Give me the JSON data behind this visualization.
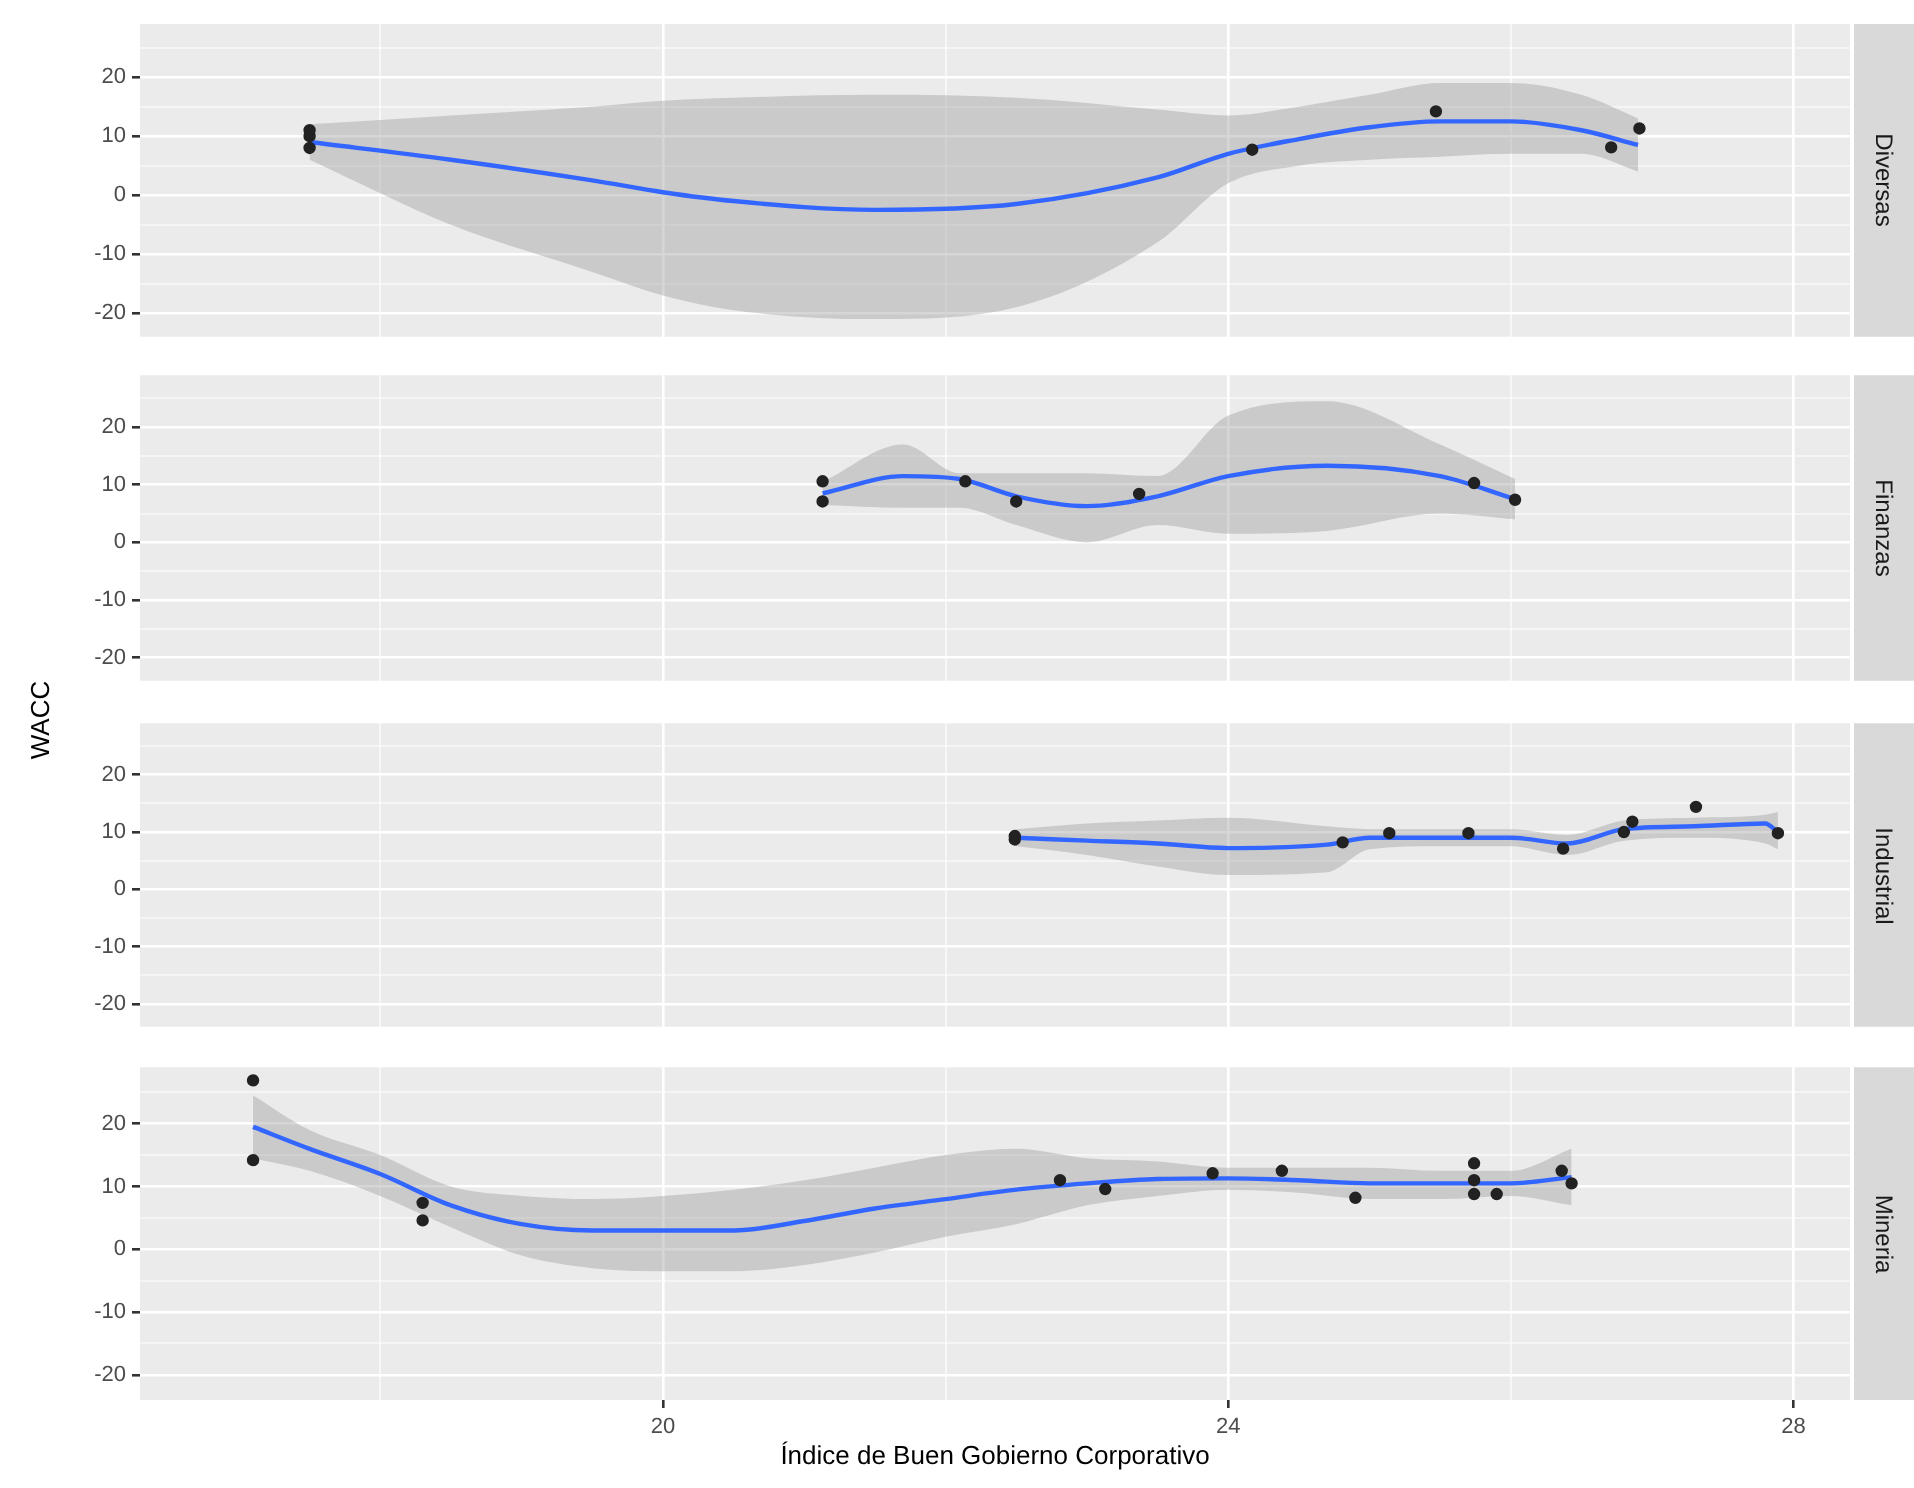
{
  "chart_data": [
    {
      "type": "scatter",
      "annotations": [
        "Diversas"
      ],
      "xlim": [
        16.3,
        28.4
      ],
      "ylim": [
        -24,
        29
      ],
      "xticks": [
        {
          "value": 18,
          "label": null
        },
        20,
        {
          "value": 22,
          "label": null
        },
        24,
        {
          "value": 26,
          "label": null
        },
        28
      ],
      "yticks": [
        -20,
        {
          "value": -15,
          "label": null
        },
        -10,
        {
          "value": -5,
          "label": null
        },
        0,
        {
          "value": 5,
          "label": null
        },
        10,
        {
          "value": 15,
          "label": null
        },
        20,
        {
          "value": 25,
          "label": null
        }
      ],
      "tick_labels": "y",
      "grid": true,
      "legend": false,
      "series": [
        {
          "type": "line",
          "color": "#3366ff",
          "marker": "none",
          "x": [
            17.5,
            18.5,
            19.5,
            20,
            20.5,
            21.5,
            22.5,
            23.5,
            24,
            24.5,
            25,
            25.5,
            26,
            26.5,
            26.9
          ],
          "values": [
            9,
            6,
            2.5,
            0.5,
            -1,
            -2.5,
            -1.5,
            3,
            7,
            9.5,
            11.5,
            12.5,
            12.5,
            11,
            8.5
          ],
          "lower": [
            6,
            -5,
            -13,
            -17,
            -19.5,
            -21,
            -19,
            -8,
            2,
            5,
            6,
            6.5,
            7,
            7,
            4
          ],
          "upper": [
            12,
            13.5,
            15,
            16,
            16.5,
            17,
            16.5,
            14.5,
            13.5,
            15,
            17,
            19,
            19,
            17,
            13
          ]
        },
        {
          "type": "scatter",
          "color": "#222222",
          "marker": "circle",
          "x": [
            17.5,
            17.5,
            17.5,
            24.17,
            25.47,
            26.71,
            26.91
          ],
          "values": [
            11,
            10,
            8,
            7.7,
            14.2,
            8.1,
            11.3
          ]
        }
      ]
    },
    {
      "type": "scatter",
      "annotations": [
        "Finanzas"
      ],
      "ylabel": "WACC",
      "xlim": [
        16.3,
        28.4
      ],
      "ylim": [
        -24,
        29
      ],
      "xticks": [
        {
          "value": 18,
          "label": null
        },
        20,
        {
          "value": 22,
          "label": null
        },
        24,
        {
          "value": 26,
          "label": null
        },
        28
      ],
      "yticks": [
        -20,
        {
          "value": -15,
          "label": null
        },
        -10,
        {
          "value": -5,
          "label": null
        },
        0,
        {
          "value": 5,
          "label": null
        },
        10,
        {
          "value": 15,
          "label": null
        },
        20,
        {
          "value": 25,
          "label": null
        }
      ],
      "tick_labels": "y",
      "grid": true,
      "legend": false,
      "series": [
        {
          "type": "line",
          "color": "#3366ff",
          "marker": "none",
          "x": [
            21.13,
            21.7,
            22.1,
            22.5,
            23,
            23.5,
            24,
            24.7,
            25.5,
            26.03
          ],
          "values": [
            8.5,
            11.5,
            11,
            8,
            6.3,
            8,
            11.5,
            13.3,
            11.5,
            7.5
          ],
          "lower": [
            6.5,
            6,
            6,
            3,
            0,
            3,
            1.5,
            2,
            5,
            4
          ],
          "upper": [
            10.5,
            17,
            12,
            12,
            12,
            11.5,
            22,
            24.5,
            17,
            11
          ]
        },
        {
          "type": "scatter",
          "color": "#222222",
          "marker": "circle",
          "x": [
            21.13,
            21.13,
            22.14,
            22.5,
            23.37,
            25.74,
            26.03
          ],
          "values": [
            10.6,
            7.1,
            10.6,
            7.1,
            8.4,
            10.3,
            7.4
          ]
        }
      ]
    },
    {
      "type": "scatter",
      "annotations": [
        "Industrial"
      ],
      "xlim": [
        16.3,
        28.4
      ],
      "ylim": [
        -24,
        29
      ],
      "xticks": [
        {
          "value": 18,
          "label": null
        },
        20,
        {
          "value": 22,
          "label": null
        },
        24,
        {
          "value": 26,
          "label": null
        },
        28
      ],
      "yticks": [
        -20,
        {
          "value": -15,
          "label": null
        },
        -10,
        {
          "value": -5,
          "label": null
        },
        0,
        {
          "value": 5,
          "label": null
        },
        10,
        {
          "value": 15,
          "label": null
        },
        20,
        {
          "value": 25,
          "label": null
        }
      ],
      "tick_labels": "y",
      "grid": true,
      "legend": false,
      "series": [
        {
          "type": "line",
          "color": "#3366ff",
          "marker": "none",
          "x": [
            22.5,
            23,
            23.5,
            24,
            24.7,
            25,
            25.5,
            26,
            26.4,
            26.8,
            27.3,
            27.8,
            27.89
          ],
          "values": [
            9,
            8.5,
            8,
            7.2,
            7.8,
            9,
            9,
            9,
            8,
            10.5,
            11,
            11.5,
            10
          ],
          "lower": [
            7.5,
            6,
            4,
            2.5,
            3,
            7,
            7.5,
            7.5,
            6,
            8.5,
            9,
            8,
            7
          ],
          "upper": [
            10.5,
            11.5,
            12,
            12.5,
            11,
            10.5,
            10.5,
            10.5,
            9.5,
            12,
            12.5,
            13,
            13.5
          ]
        },
        {
          "type": "scatter",
          "color": "#222222",
          "marker": "circle",
          "x": [
            22.49,
            22.49,
            24.81,
            25.14,
            25.7,
            26.37,
            26.8,
            26.86,
            27.31,
            27.89
          ],
          "values": [
            9.3,
            8.7,
            8.2,
            9.8,
            9.8,
            7.1,
            10,
            11.8,
            14.4,
            9.8
          ]
        }
      ]
    },
    {
      "type": "scatter",
      "annotations": [
        "Mineria"
      ],
      "xlabel": "Índice de Buen Gobierno Corporativo",
      "xlim": [
        16.3,
        28.4
      ],
      "ylim": [
        -24,
        29
      ],
      "xticks": [
        {
          "value": 18,
          "label": null
        },
        20,
        {
          "value": 22,
          "label": null
        },
        24,
        {
          "value": 26,
          "label": null
        },
        28
      ],
      "yticks": [
        -20,
        {
          "value": -15,
          "label": null
        },
        -10,
        {
          "value": -5,
          "label": null
        },
        0,
        {
          "value": 5,
          "label": null
        },
        10,
        {
          "value": 15,
          "label": null
        },
        20,
        {
          "value": 25,
          "label": null
        }
      ],
      "grid": true,
      "legend": false,
      "series": [
        {
          "type": "line",
          "color": "#3366ff",
          "marker": "none",
          "x": [
            17.1,
            17.5,
            18,
            18.5,
            19,
            19.5,
            20,
            20.5,
            21,
            21.5,
            22,
            22.5,
            23,
            23.5,
            24,
            24.5,
            25,
            25.5,
            26,
            26.43
          ],
          "values": [
            19.5,
            16,
            12,
            7,
            4,
            3,
            3,
            3,
            4.5,
            6.5,
            8,
            9.5,
            10.5,
            11.2,
            11.3,
            11,
            10.5,
            10.5,
            10.5,
            11.5
          ],
          "lower": [
            14.5,
            12.5,
            8.5,
            3.5,
            -1,
            -3,
            -3.5,
            -3.5,
            -2.5,
            -0.5,
            2,
            4,
            7,
            8.5,
            9.5,
            9,
            8,
            8,
            8.5,
            7
          ],
          "upper": [
            24.5,
            19,
            15,
            10,
            8.5,
            8,
            8.5,
            9.5,
            11,
            13,
            15,
            16,
            14.5,
            14,
            13,
            13,
            13,
            12.5,
            12.5,
            16
          ]
        },
        {
          "type": "scatter",
          "color": "#222222",
          "marker": "circle",
          "x": [
            17.1,
            17.1,
            18.3,
            18.3,
            22.81,
            23.13,
            23.89,
            24.38,
            24.9,
            25.74,
            25.74,
            25.74,
            25.9,
            26.36,
            26.43
          ],
          "values": [
            26.9,
            14.2,
            7.4,
            4.6,
            11,
            9.6,
            12.1,
            12.5,
            8.2,
            13.7,
            11,
            8.8,
            8.8,
            12.5,
            10.5
          ]
        }
      ]
    }
  ]
}
